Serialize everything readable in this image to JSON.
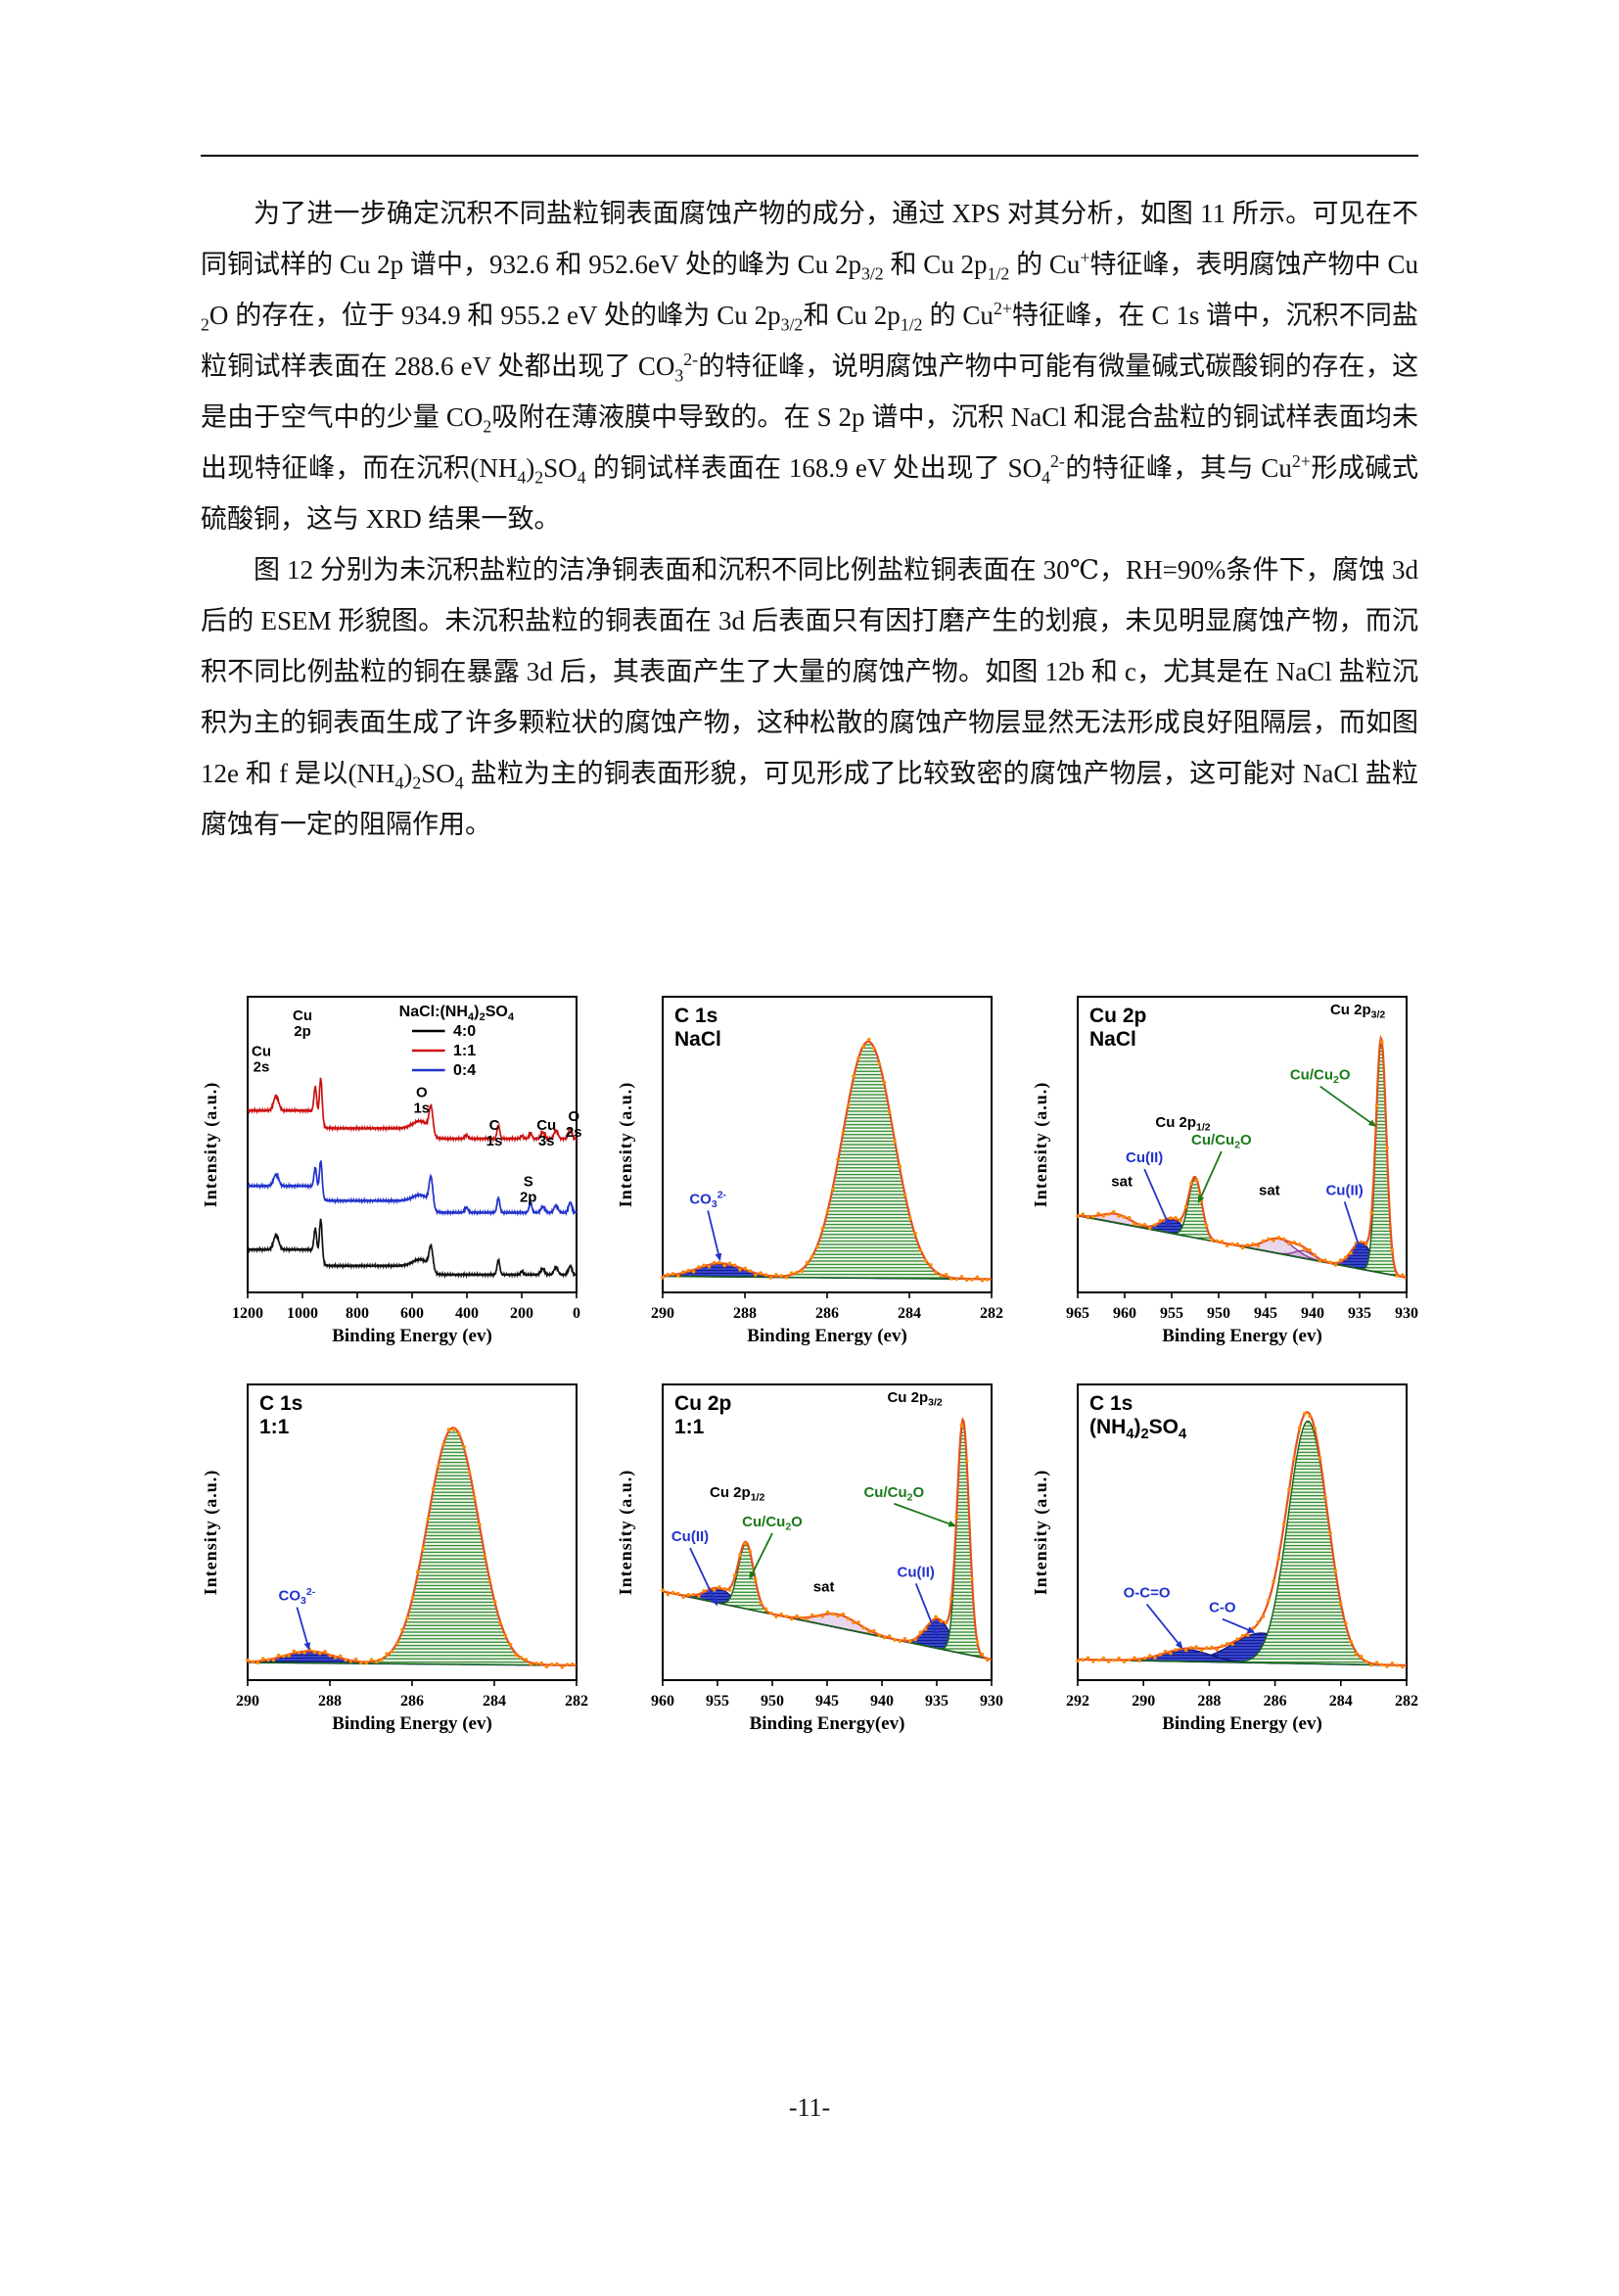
{
  "page": {
    "footer": "-11-"
  },
  "paragraphs": [
    "为了进一步确定沉积不同盐粒铜表面腐蚀产物的成分，通过 XPS 对其分析，如图 11 所示。可见在不同铜试样的 Cu 2p 谱中，932.6 和 952.6eV 处的峰为 Cu 2p_{3/2} 和 Cu 2p_{1/2} 的 Cu^{+}特征峰，表明腐蚀产物中 Cu_{2}O 的存在，位于 934.9 和 955.2 eV 处的峰为 Cu 2p_{3/2}和 Cu 2p_{1/2} 的 Cu^{2+}特征峰，在 C 1s 谱中，沉积不同盐粒铜试样表面在 288.6 eV 处都出现了 CO_{3}^{2-}的特征峰，说明腐蚀产物中可能有微量碱式碳酸铜的存在，这是由于空气中的少量 CO_{2}吸附在薄液膜中导致的。在 S 2p 谱中，沉积 NaCl 和混合盐粒的铜试样表面均未出现特征峰，而在沉积(NH_{4})_{2}SO_{4} 的铜试样表面在 168.9 eV 处出现了 SO_{4}^{2-}的特征峰，其与 Cu^{2+}形成碱式硫酸铜，这与 XRD 结果一致。",
    "图 12 分别为未沉积盐粒的洁净铜表面和沉积不同比例盐粒铜表面在 30℃，RH=90%条件下，腐蚀 3d 后的 ESEM 形貌图。未沉积盐粒的铜表面在 3d 后表面只有因打磨产生的划痕，未见明显腐蚀产物，而沉积不同比例盐粒的铜在暴露 3d 后，其表面产生了大量的腐蚀产物。如图 12b 和 c，尤其是在 NaCl 盐粒沉积为主的铜表面生成了许多颗粒状的腐蚀产物，这种松散的腐蚀产物层显然无法形成良好阻隔层，而如图 12e 和 f 是以(NH_{4})_{2}SO_{4} 盐粒为主的铜表面形貌，可见形成了比较致密的腐蚀产物层，这可能对 NaCl 盐粒腐蚀有一定的阻隔作用。"
  ],
  "chart_data": {
    "palette": {
      "envelope": "#e8521a",
      "dots": "#ff8800",
      "green": "#1e7d1e",
      "greenStroke": "#156315",
      "blue": "#2e3ac4",
      "blueStroke": "#10187a",
      "purple": "#8a3fa0"
    },
    "charts": [
      {
        "id": "survey",
        "type": "survey",
        "ylabel": "Intensity (a.u.)",
        "xlabel": "Binding Energy (ev)",
        "xleft": 1200,
        "xright": 0,
        "ticks": [
          1200,
          1000,
          800,
          600,
          400,
          200,
          0
        ],
        "legend": {
          "title": "NaCl:(NH_{4})_{2}SO_{4}",
          "entries": [
            {
              "label": "4:0",
              "color": "#000000"
            },
            {
              "label": "1:1",
              "color": "#cc1111"
            },
            {
              "label": "0:4",
              "color": "#2233cc"
            }
          ]
        },
        "labels": [
          {
            "text": "Cu\n2s",
            "x": 1150,
            "y": 0.8
          },
          {
            "text": "Cu\n2p",
            "x": 1000,
            "y": 0.92
          },
          {
            "text": "O\n1s",
            "x": 565,
            "y": 0.66
          },
          {
            "text": "C\n1s",
            "x": 300,
            "y": 0.55
          },
          {
            "text": "Cu\n3s",
            "x": 110,
            "y": 0.55
          },
          {
            "text": "O\n2s",
            "x": 10,
            "y": 0.58
          },
          {
            "text": "S\n2p",
            "x": 176,
            "y": 0.36
          }
        ],
        "series": [
          {
            "name": "4:0",
            "color": "#111111",
            "offset": 0.06,
            "peaks": [
              [
                1096,
                0.05,
                9
              ],
              [
                953,
                0.08,
                5
              ],
              [
                933,
                0.14,
                5
              ],
              [
                570,
                0.022,
                28
              ],
              [
                531,
                0.08,
                7
              ],
              [
                285,
                0.05,
                5
              ],
              [
                199,
                0.012,
                5
              ],
              [
                123,
                0.02,
                7
              ],
              [
                75,
                0.026,
                7
              ],
              [
                23,
                0.03,
                6
              ]
            ],
            "steps": [
              [
                940,
                0.055
              ],
              [
                535,
                0.03
              ]
            ]
          },
          {
            "name": "0:4",
            "color": "#2233cc",
            "offset": 0.27,
            "peaks": [
              [
                1096,
                0.04,
                9
              ],
              [
                953,
                0.07,
                5
              ],
              [
                933,
                0.12,
                5
              ],
              [
                570,
                0.02,
                28
              ],
              [
                531,
                0.1,
                7
              ],
              [
                402,
                0.018,
                6
              ],
              [
                285,
                0.05,
                5
              ],
              [
                168,
                0.035,
                5
              ],
              [
                123,
                0.02,
                7
              ],
              [
                75,
                0.025,
                7
              ],
              [
                23,
                0.035,
                6
              ]
            ],
            "steps": [
              [
                940,
                0.05
              ],
              [
                535,
                0.04
              ]
            ]
          },
          {
            "name": "1:1",
            "color": "#cc1111",
            "offset": 0.52,
            "peaks": [
              [
                1096,
                0.05,
                9
              ],
              [
                953,
                0.09,
                5
              ],
              [
                933,
                0.15,
                5
              ],
              [
                570,
                0.025,
                28
              ],
              [
                531,
                0.09,
                7
              ],
              [
                402,
                0.012,
                6
              ],
              [
                285,
                0.045,
                5
              ],
              [
                199,
                0.01,
                5
              ],
              [
                168,
                0.02,
                5
              ],
              [
                123,
                0.022,
                7
              ],
              [
                75,
                0.028,
                7
              ],
              [
                23,
                0.035,
                6
              ]
            ],
            "steps": [
              [
                940,
                0.06
              ],
              [
                535,
                0.035
              ]
            ]
          }
        ]
      },
      {
        "id": "c1s-nacl",
        "type": "fit",
        "title": [
          "C 1s",
          "NaCl"
        ],
        "ylabel": "Intensity (a.u.)",
        "xlabel": "Binding Energy (ev)",
        "xleft": 290,
        "xright": 282,
        "ticks": [
          290,
          288,
          286,
          284,
          282
        ],
        "baseline": {
          "left": 0.055,
          "right": 0.045,
          "color": "#1a2a9e"
        },
        "components": [
          {
            "center": 285.0,
            "height": 0.8,
            "width": 0.62,
            "color": "green"
          },
          {
            "center": 288.6,
            "height": 0.045,
            "width": 0.55,
            "color": "blue"
          }
        ],
        "annotations": [
          {
            "text": "CO_{3}^{2-}",
            "x": 288.9,
            "y": 0.3,
            "color": "#2233cc",
            "ax": 288.6,
            "ay": 0.105
          }
        ]
      },
      {
        "id": "cu2p-nacl",
        "type": "fit",
        "title": [
          "Cu 2p",
          "NaCl"
        ],
        "ylabel": "Intensity  (a.u.)",
        "xlabel": "Binding Energy (ev)",
        "xleft": 965,
        "xright": 930,
        "ticks": [
          965,
          960,
          955,
          950,
          945,
          940,
          935,
          930
        ],
        "baseline": {
          "left": 0.26,
          "right": 0.05,
          "color": "#aa33aa"
        },
        "components": [
          {
            "center": 932.7,
            "height": 0.78,
            "width": 0.55,
            "color": "green"
          },
          {
            "center": 934.8,
            "height": 0.09,
            "width": 1.1,
            "color": "blue"
          },
          {
            "center": 943.6,
            "height": 0.05,
            "width": 1.6,
            "color": "purple"
          },
          {
            "center": 940.9,
            "height": 0.025,
            "width": 1.0,
            "color": "purple"
          },
          {
            "center": 952.5,
            "height": 0.2,
            "width": 0.7,
            "color": "green"
          },
          {
            "center": 955.0,
            "height": 0.05,
            "width": 1.2,
            "color": "blue"
          },
          {
            "center": 960.9,
            "height": 0.03,
            "width": 1.5,
            "color": "purple"
          }
        ],
        "annotations": [
          {
            "text": "Cu 2p_{3/2}",
            "x": 935.2,
            "y": 0.94,
            "color": "#000000"
          },
          {
            "text": "Cu 2p_{1/2}",
            "x": 953.8,
            "y": 0.56,
            "color": "#000000"
          },
          {
            "text": "sat",
            "x": 960.3,
            "y": 0.36,
            "color": "#000000"
          },
          {
            "text": "sat",
            "x": 944.6,
            "y": 0.33,
            "color": "#000000"
          },
          {
            "text": "Cu(II)",
            "x": 957.9,
            "y": 0.44,
            "color": "#2233cc",
            "ax": 955.2,
            "ay": 0.22
          },
          {
            "text": "Cu/Cu_{2}O",
            "x": 949.7,
            "y": 0.5,
            "color": "#1b7a1b",
            "ax": 952.2,
            "ay": 0.3
          },
          {
            "text": "Cu/Cu_{2}O",
            "x": 939.2,
            "y": 0.72,
            "color": "#1b7a1b",
            "ax": 933.2,
            "ay": 0.56
          },
          {
            "text": "Cu(II)",
            "x": 936.6,
            "y": 0.33,
            "color": "#2233cc",
            "ax": 934.9,
            "ay": 0.14
          }
        ]
      },
      {
        "id": "c1s-11",
        "type": "fit",
        "title": [
          "C 1s",
          "1:1"
        ],
        "ylabel": "Intensity  (a.u.)",
        "xlabel": "Binding Energy (ev)",
        "xleft": 290,
        "xright": 282,
        "ticks": [
          290,
          288,
          286,
          284,
          282
        ],
        "baseline": {
          "left": 0.06,
          "right": 0.05,
          "color": "#1a2a9e"
        },
        "components": [
          {
            "center": 285.0,
            "height": 0.8,
            "width": 0.62,
            "color": "green"
          },
          {
            "center": 288.5,
            "height": 0.04,
            "width": 0.6,
            "color": "blue"
          }
        ],
        "annotations": [
          {
            "text": "CO_{3}^{2-}",
            "x": 288.8,
            "y": 0.27,
            "color": "#2233cc",
            "ax": 288.5,
            "ay": 0.1
          }
        ]
      },
      {
        "id": "cu2p-11",
        "type": "fit",
        "title": [
          "Cu 2p",
          "1:1"
        ],
        "ylabel": "Intensity  (a.u.)",
        "xlabel": "Binding Energy(ev)",
        "xleft": 960,
        "xright": 930,
        "ticks": [
          960,
          955,
          950,
          945,
          940,
          935,
          930
        ],
        "baseline": {
          "left": 0.3,
          "right": 0.07,
          "color": "#aa33aa"
        },
        "components": [
          {
            "center": 932.6,
            "height": 0.78,
            "width": 0.55,
            "color": "green"
          },
          {
            "center": 934.9,
            "height": 0.1,
            "width": 1.1,
            "color": "blue"
          },
          {
            "center": 944.0,
            "height": 0.045,
            "width": 1.8,
            "color": "purple"
          },
          {
            "center": 952.4,
            "height": 0.22,
            "width": 0.7,
            "color": "green"
          },
          {
            "center": 954.9,
            "height": 0.05,
            "width": 1.2,
            "color": "blue"
          }
        ],
        "annotations": [
          {
            "text": "Cu 2p_{3/2}",
            "x": 937.0,
            "y": 0.94,
            "color": "#000000"
          },
          {
            "text": "Cu 2p_{1/2}",
            "x": 953.2,
            "y": 0.62,
            "color": "#000000"
          },
          {
            "text": "Cu(II)",
            "x": 957.5,
            "y": 0.47,
            "color": "#2233cc",
            "ax": 955.0,
            "ay": 0.25
          },
          {
            "text": "Cu/Cu_{2}O",
            "x": 950.0,
            "y": 0.52,
            "color": "#1b7a1b",
            "ax": 952.1,
            "ay": 0.34
          },
          {
            "text": "Cu/Cu_{2}O",
            "x": 938.9,
            "y": 0.62,
            "color": "#1b7a1b",
            "ax": 933.2,
            "ay": 0.52
          },
          {
            "text": "Cu(II)",
            "x": 936.9,
            "y": 0.35,
            "color": "#2233cc",
            "ax": 934.9,
            "ay": 0.14
          },
          {
            "text": "sat",
            "x": 945.3,
            "y": 0.3,
            "color": "#000000"
          }
        ]
      },
      {
        "id": "c1s-nh42so4",
        "type": "fit",
        "title": [
          "C 1s",
          "(NH_{4})_{2}SO_{4}"
        ],
        "ylabel": "Intensity  (a.u.)",
        "xlabel": "Binding Energy (ev)",
        "xleft": 292,
        "xright": 282,
        "ticks": [
          292,
          290,
          288,
          286,
          284,
          282
        ],
        "baseline": {
          "left": 0.07,
          "right": 0.05,
          "color": "#1a2a9e"
        },
        "components": [
          {
            "center": 285.0,
            "height": 0.82,
            "width": 0.6,
            "color": "green"
          },
          {
            "center": 286.4,
            "height": 0.1,
            "width": 0.9,
            "color": "blue"
          },
          {
            "center": 288.7,
            "height": 0.04,
            "width": 0.7,
            "color": "blue"
          }
        ],
        "annotations": [
          {
            "text": "O-C=O",
            "x": 289.9,
            "y": 0.28,
            "color": "#2233cc",
            "ax": 288.8,
            "ay": 0.105
          },
          {
            "text": "C-O",
            "x": 287.6,
            "y": 0.23,
            "color": "#2233cc",
            "ax": 286.6,
            "ay": 0.16
          }
        ]
      }
    ]
  }
}
